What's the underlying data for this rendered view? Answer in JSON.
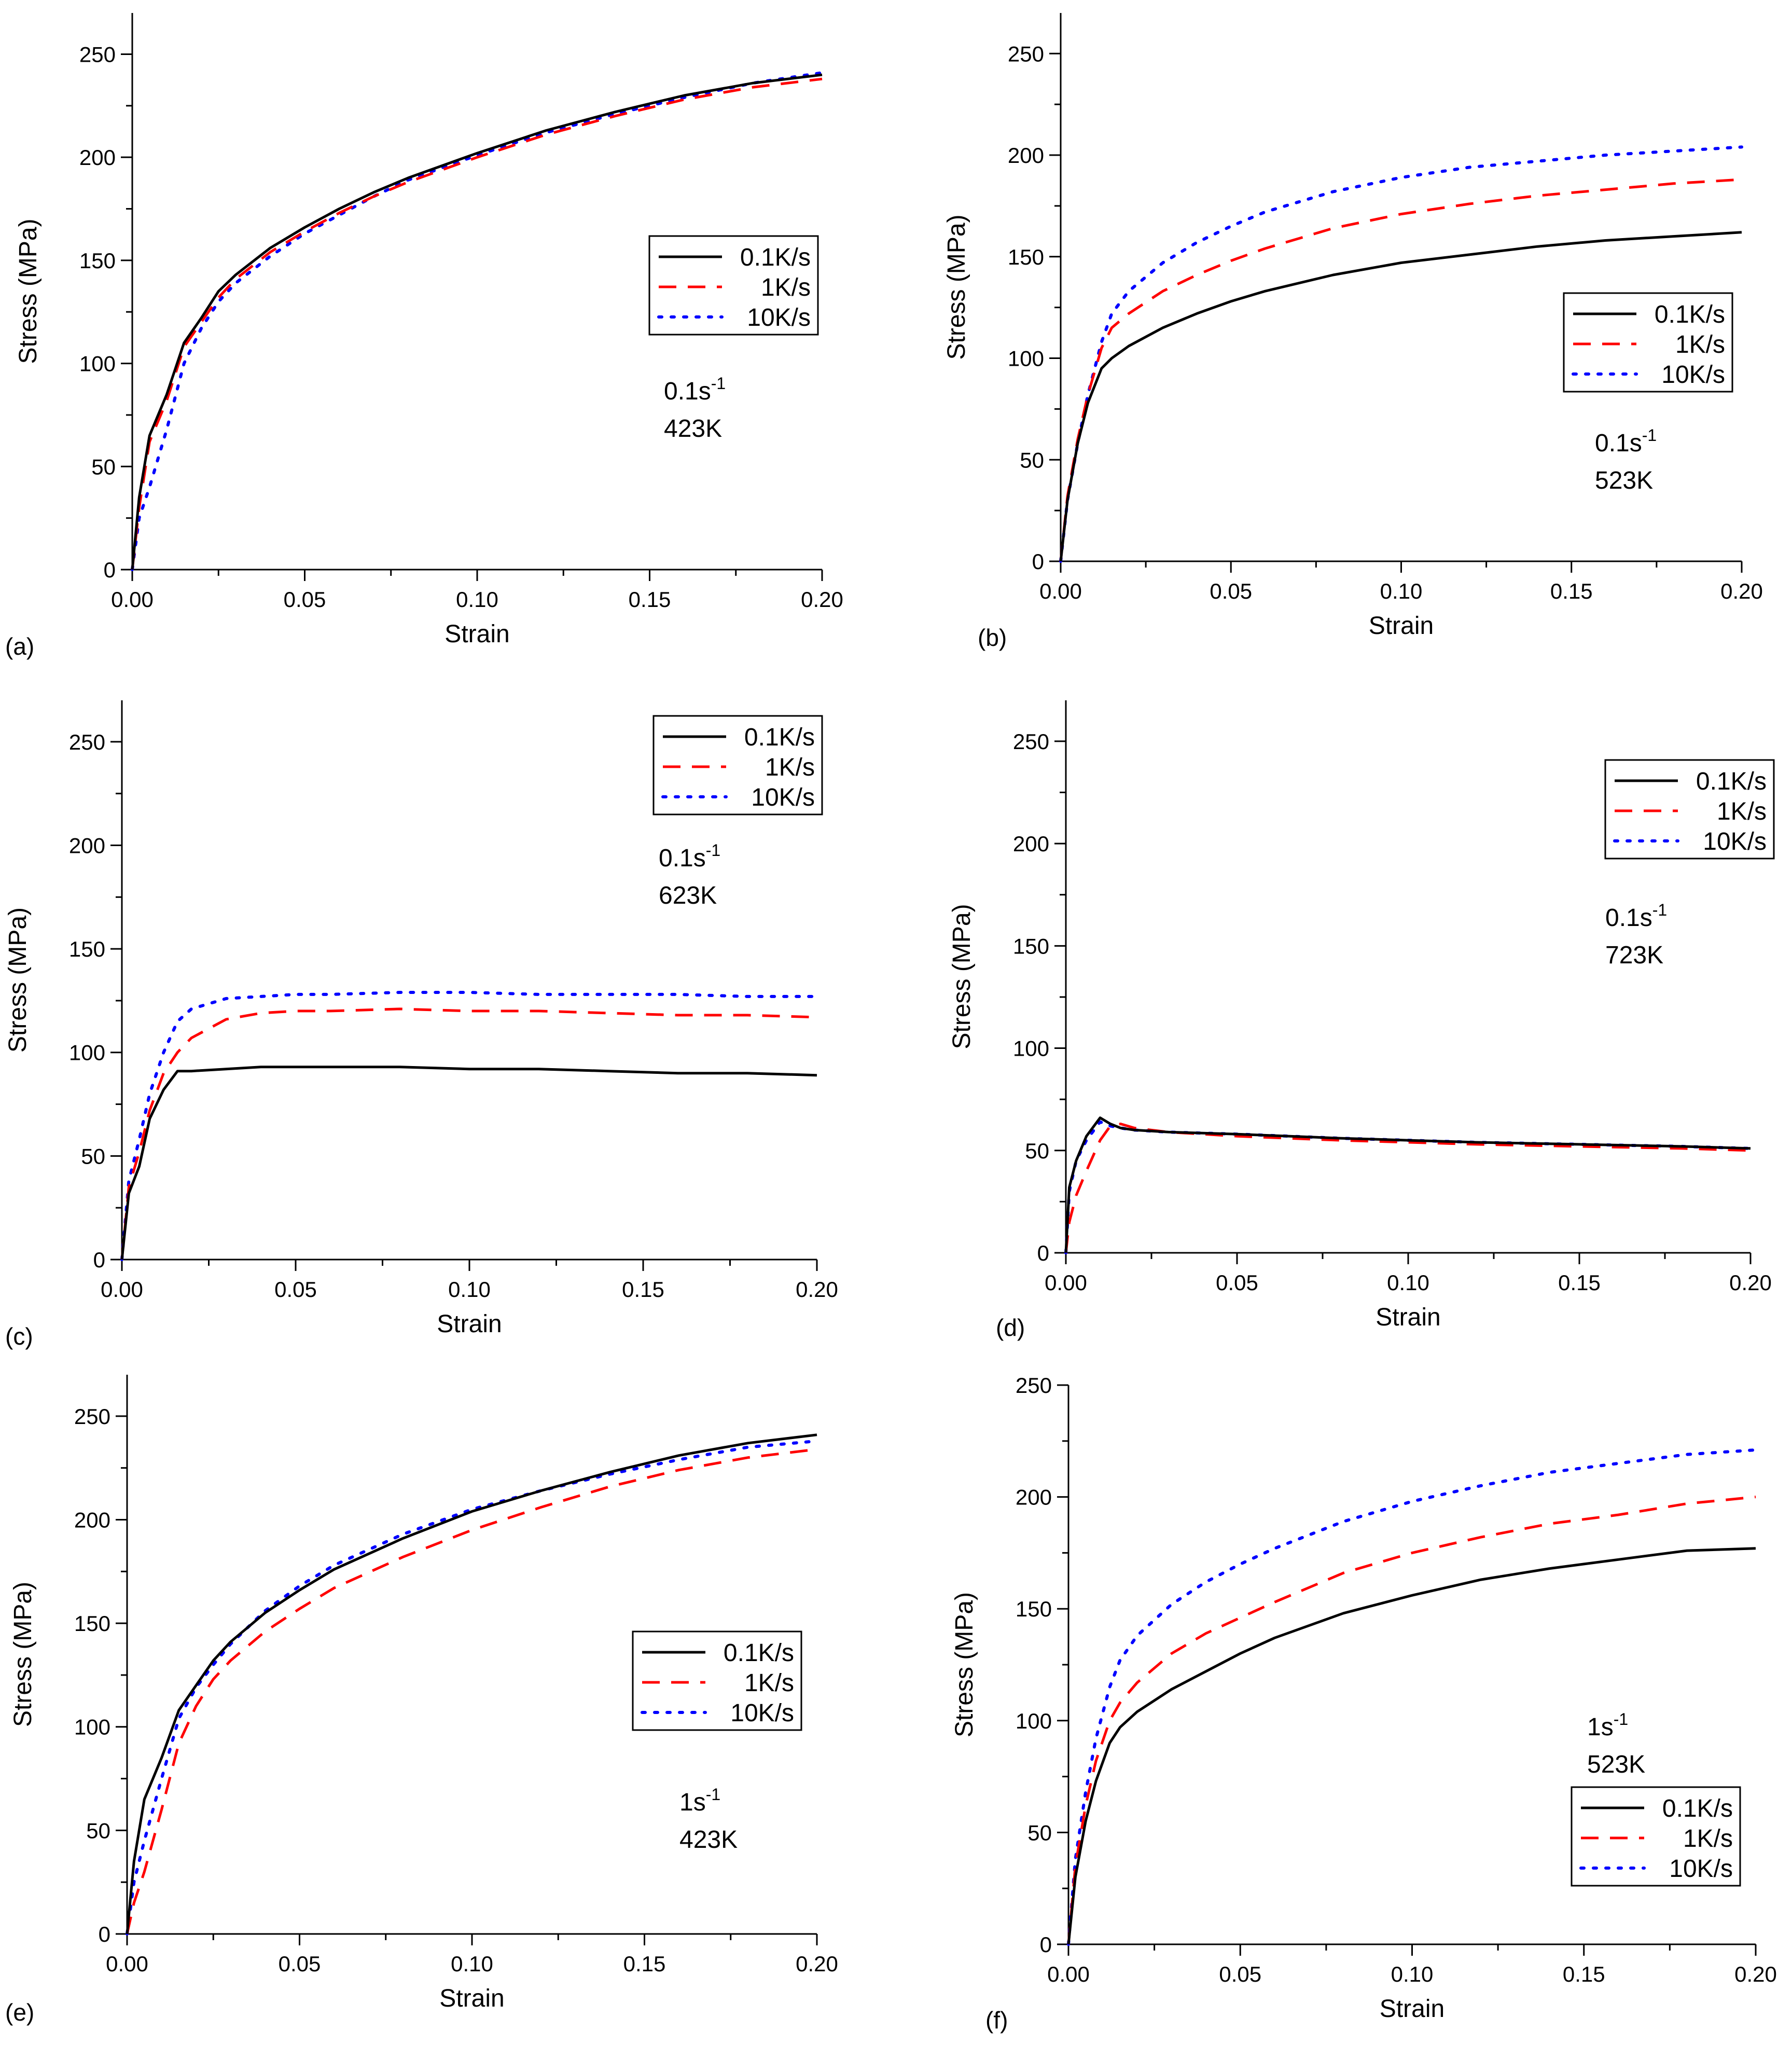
{
  "figure": {
    "xlabel": "Strain",
    "ylabel": "Stress (MPa)",
    "legend_entries": [
      {
        "name": "0.1K/s",
        "color": "#000000",
        "style": "solid"
      },
      {
        "name": "1K/s",
        "color": "#ff0000",
        "style": "dashed"
      },
      {
        "name": "10K/s",
        "color": "#0000ff",
        "style": "dotted"
      }
    ]
  },
  "chart_data": [
    {
      "panel": "(a)",
      "type": "line",
      "rate": "0.1s",
      "rate_exp": "-1",
      "temperature": "423K",
      "xlabel": "Strain",
      "ylabel": "Stress (MPa)",
      "xlim": [
        0,
        0.2
      ],
      "ylim": [
        0,
        270
      ],
      "xticks": [
        "0.00",
        "0.05",
        "0.10",
        "0.15",
        "0.20"
      ],
      "yticks": [
        "0",
        "50",
        "100",
        "150",
        "200",
        "250"
      ],
      "legend_position": "right-middle",
      "x": [
        0,
        0.002,
        0.005,
        0.01,
        0.015,
        0.02,
        0.025,
        0.03,
        0.04,
        0.05,
        0.06,
        0.07,
        0.08,
        0.1,
        0.12,
        0.14,
        0.16,
        0.18,
        0.2
      ],
      "series": [
        {
          "name": "0.1K/s",
          "values": [
            0,
            35,
            65,
            85,
            110,
            122,
            135,
            143,
            156,
            166,
            175,
            183,
            190,
            202,
            213,
            222,
            230,
            236,
            240
          ]
        },
        {
          "name": "1K/s",
          "values": [
            0,
            30,
            62,
            82,
            108,
            120,
            132,
            141,
            154,
            164,
            173,
            181,
            188,
            200,
            211,
            220,
            228,
            234,
            238
          ]
        },
        {
          "name": "10K/s",
          "values": [
            0,
            25,
            40,
            68,
            100,
            117,
            130,
            139,
            152,
            163,
            172,
            181,
            189,
            201,
            212,
            221,
            229,
            236,
            241
          ]
        }
      ]
    },
    {
      "panel": "(b)",
      "type": "line",
      "rate": "0.1s",
      "rate_exp": "-1",
      "temperature": "523K",
      "xlabel": "Strain",
      "ylabel": "Stress (MPa)",
      "xlim": [
        0,
        0.2
      ],
      "ylim": [
        0,
        270
      ],
      "xticks": [
        "0.00",
        "0.05",
        "0.10",
        "0.15",
        "0.20"
      ],
      "yticks": [
        "0",
        "50",
        "100",
        "150",
        "200",
        "250"
      ],
      "legend_position": "right-middle",
      "x": [
        0,
        0.002,
        0.005,
        0.008,
        0.012,
        0.015,
        0.02,
        0.03,
        0.04,
        0.05,
        0.06,
        0.08,
        0.1,
        0.12,
        0.14,
        0.16,
        0.18,
        0.2
      ],
      "series": [
        {
          "name": "0.1K/s",
          "values": [
            0,
            30,
            58,
            78,
            95,
            100,
            106,
            115,
            122,
            128,
            133,
            141,
            147,
            151,
            155,
            158,
            160,
            162
          ]
        },
        {
          "name": "1K/s",
          "values": [
            0,
            32,
            60,
            82,
            105,
            115,
            122,
            133,
            141,
            148,
            154,
            164,
            171,
            176,
            180,
            183,
            186,
            188
          ]
        },
        {
          "name": "10K/s",
          "values": [
            0,
            30,
            58,
            82,
            108,
            122,
            133,
            147,
            157,
            165,
            172,
            182,
            189,
            194,
            197,
            200,
            202,
            204
          ]
        }
      ]
    },
    {
      "panel": "(c)",
      "type": "line",
      "rate": "0.1s",
      "rate_exp": "-1",
      "temperature": "623K",
      "xlabel": "Strain",
      "ylabel": "Stress (MPa)",
      "xlim": [
        0,
        0.2
      ],
      "ylim": [
        0,
        270
      ],
      "xticks": [
        "0.00",
        "0.05",
        "0.10",
        "0.15",
        "0.20"
      ],
      "yticks": [
        "0",
        "50",
        "100",
        "150",
        "200",
        "250"
      ],
      "legend_position": "top-right",
      "x": [
        0,
        0.002,
        0.005,
        0.008,
        0.012,
        0.016,
        0.02,
        0.03,
        0.04,
        0.05,
        0.06,
        0.08,
        0.1,
        0.12,
        0.14,
        0.16,
        0.18,
        0.2
      ],
      "series": [
        {
          "name": "0.1K/s",
          "values": [
            0,
            32,
            45,
            68,
            82,
            91,
            91,
            92,
            93,
            93,
            93,
            93,
            92,
            92,
            91,
            90,
            90,
            89
          ]
        },
        {
          "name": "1K/s",
          "values": [
            0,
            35,
            52,
            72,
            90,
            100,
            107,
            116,
            119,
            120,
            120,
            121,
            120,
            120,
            119,
            118,
            118,
            117
          ]
        },
        {
          "name": "10K/s",
          "values": [
            0,
            38,
            58,
            80,
            100,
            115,
            121,
            126,
            127,
            128,
            128,
            129,
            129,
            128,
            128,
            128,
            127,
            127
          ]
        }
      ]
    },
    {
      "panel": "(d)",
      "type": "line",
      "rate": "0.1s",
      "rate_exp": "-1",
      "temperature": "723K",
      "xlabel": "Strain",
      "ylabel": "Stress (MPa)",
      "xlim": [
        0,
        0.2
      ],
      "ylim": [
        0,
        270
      ],
      "xticks": [
        "0.00",
        "0.05",
        "0.10",
        "0.15",
        "0.20"
      ],
      "yticks": [
        "0",
        "50",
        "100",
        "150",
        "200",
        "250"
      ],
      "legend_position": "top-right",
      "x": [
        0,
        0.001,
        0.003,
        0.006,
        0.01,
        0.013,
        0.016,
        0.02,
        0.03,
        0.05,
        0.08,
        0.1,
        0.12,
        0.15,
        0.18,
        0.2
      ],
      "series": [
        {
          "name": "0.1K/s",
          "values": [
            0,
            32,
            45,
            57,
            66,
            63,
            61,
            60,
            59,
            58,
            56,
            55,
            54,
            53,
            52,
            51
          ]
        },
        {
          "name": "1K/s",
          "values": [
            0,
            15,
            28,
            40,
            55,
            62,
            63,
            61,
            59,
            57,
            55,
            54,
            53,
            52,
            51,
            50
          ]
        },
        {
          "name": "10K/s",
          "values": [
            0,
            30,
            45,
            55,
            64,
            62,
            61,
            60,
            59,
            58,
            56,
            55,
            54,
            53,
            52,
            51
          ]
        }
      ]
    },
    {
      "panel": "(e)",
      "type": "line",
      "rate": "1s",
      "rate_exp": "-1",
      "temperature": "423K",
      "xlabel": "Strain",
      "ylabel": "Stress (MPa)",
      "xlim": [
        0,
        0.2
      ],
      "ylim": [
        0,
        270
      ],
      "xticks": [
        "0.00",
        "0.05",
        "0.10",
        "0.15",
        "0.20"
      ],
      "yticks": [
        "0",
        "50",
        "100",
        "150",
        "200",
        "250"
      ],
      "legend_position": "right-middle",
      "x": [
        0,
        0.002,
        0.005,
        0.01,
        0.015,
        0.02,
        0.025,
        0.03,
        0.04,
        0.05,
        0.06,
        0.08,
        0.1,
        0.12,
        0.14,
        0.16,
        0.18,
        0.2
      ],
      "series": [
        {
          "name": "0.1K/s",
          "values": [
            0,
            35,
            65,
            85,
            108,
            120,
            132,
            141,
            155,
            166,
            176,
            191,
            204,
            214,
            223,
            231,
            237,
            241
          ]
        },
        {
          "name": "1K/s",
          "values": [
            0,
            15,
            30,
            60,
            92,
            110,
            123,
            132,
            146,
            157,
            167,
            182,
            195,
            206,
            216,
            224,
            230,
            234
          ]
        },
        {
          "name": "10K/s",
          "values": [
            0,
            25,
            45,
            75,
            104,
            119,
            130,
            140,
            156,
            168,
            178,
            193,
            205,
            214,
            222,
            229,
            235,
            238
          ]
        }
      ]
    },
    {
      "panel": "(f)",
      "type": "line",
      "rate": "1s",
      "rate_exp": "-1",
      "temperature": "523K",
      "xlabel": "Strain",
      "ylabel": "Stress (MPa)",
      "xlim": [
        0,
        0.2
      ],
      "ylim": [
        0,
        250
      ],
      "xticks": [
        "0.00",
        "0.05",
        "0.10",
        "0.15",
        "0.20"
      ],
      "yticks": [
        "0",
        "50",
        "100",
        "150",
        "200",
        "250"
      ],
      "legend_position": "right-bottom",
      "x": [
        0,
        0.002,
        0.005,
        0.008,
        0.012,
        0.015,
        0.02,
        0.03,
        0.04,
        0.05,
        0.06,
        0.08,
        0.1,
        0.12,
        0.14,
        0.16,
        0.18,
        0.2
      ],
      "series": [
        {
          "name": "0.1K/s",
          "values": [
            0,
            30,
            55,
            73,
            90,
            97,
            104,
            114,
            122,
            130,
            137,
            148,
            156,
            163,
            168,
            172,
            176,
            177
          ]
        },
        {
          "name": "1K/s",
          "values": [
            0,
            35,
            62,
            82,
            100,
            108,
            117,
            130,
            139,
            146,
            153,
            166,
            175,
            182,
            188,
            192,
            197,
            200
          ]
        },
        {
          "name": "10K/s",
          "values": [
            0,
            38,
            68,
            92,
            115,
            127,
            138,
            152,
            162,
            170,
            177,
            189,
            198,
            205,
            211,
            215,
            219,
            221
          ]
        }
      ]
    }
  ]
}
